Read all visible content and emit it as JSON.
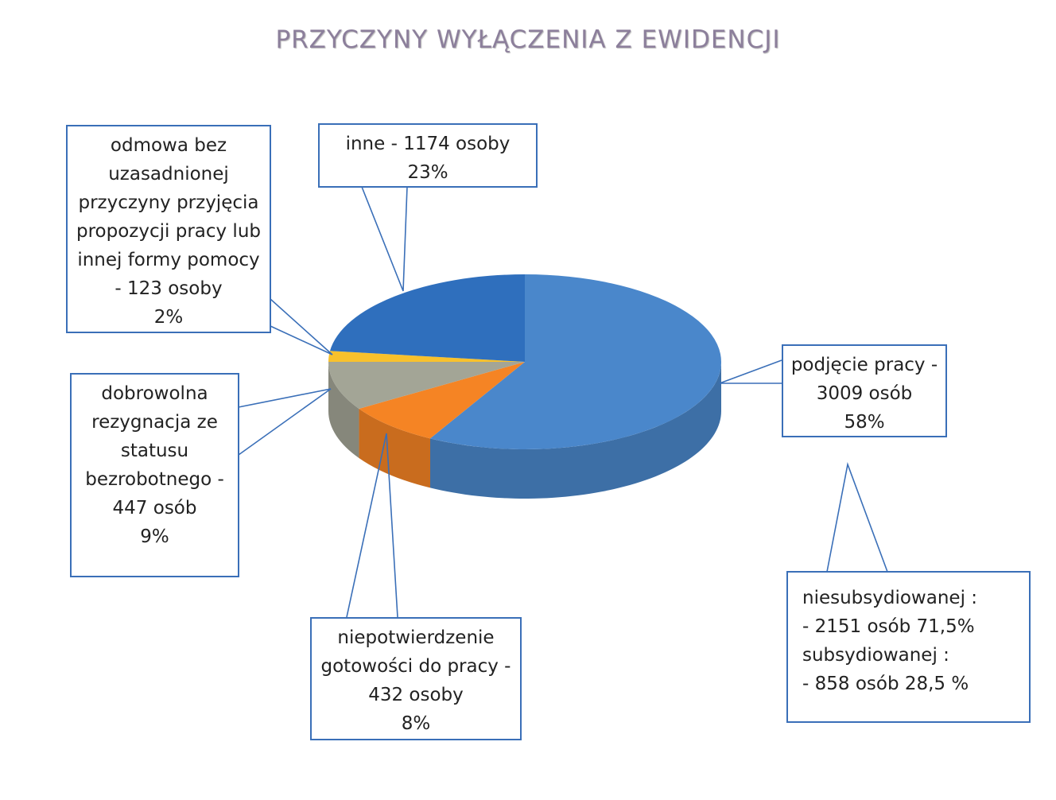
{
  "chart_data": {
    "type": "pie3d",
    "title": "PRZYCZYNY WYŁĄCZENIA Z EWIDENCJI",
    "categories": [
      "podjęcie pracy - 3009 osób",
      "niepotwierdzenie gotowości do pracy - 432 osoby",
      "dobrowolna rezygnacja ze statusu bezrobotnego - 447 osób",
      "odmowa bez uzasadnionej przyczyny przyjęcia propozycji pracy lub innej formy pomocy - 123 osoby",
      "inne - 1174 osoby"
    ],
    "values": [
      58,
      8,
      9,
      2,
      23
    ],
    "value_labels": [
      "58%",
      "8%",
      "9%",
      "2%",
      "23%"
    ],
    "colors": [
      "#4a87cb",
      "#f58424",
      "#a3a596",
      "#f8c12c",
      "#2f6fbd"
    ],
    "annotation": [
      "niesubsydiowanej :",
      "- 2151 osób 71,5%",
      "subsydiowanej :",
      "- 858 osób 28,5 %"
    ]
  }
}
